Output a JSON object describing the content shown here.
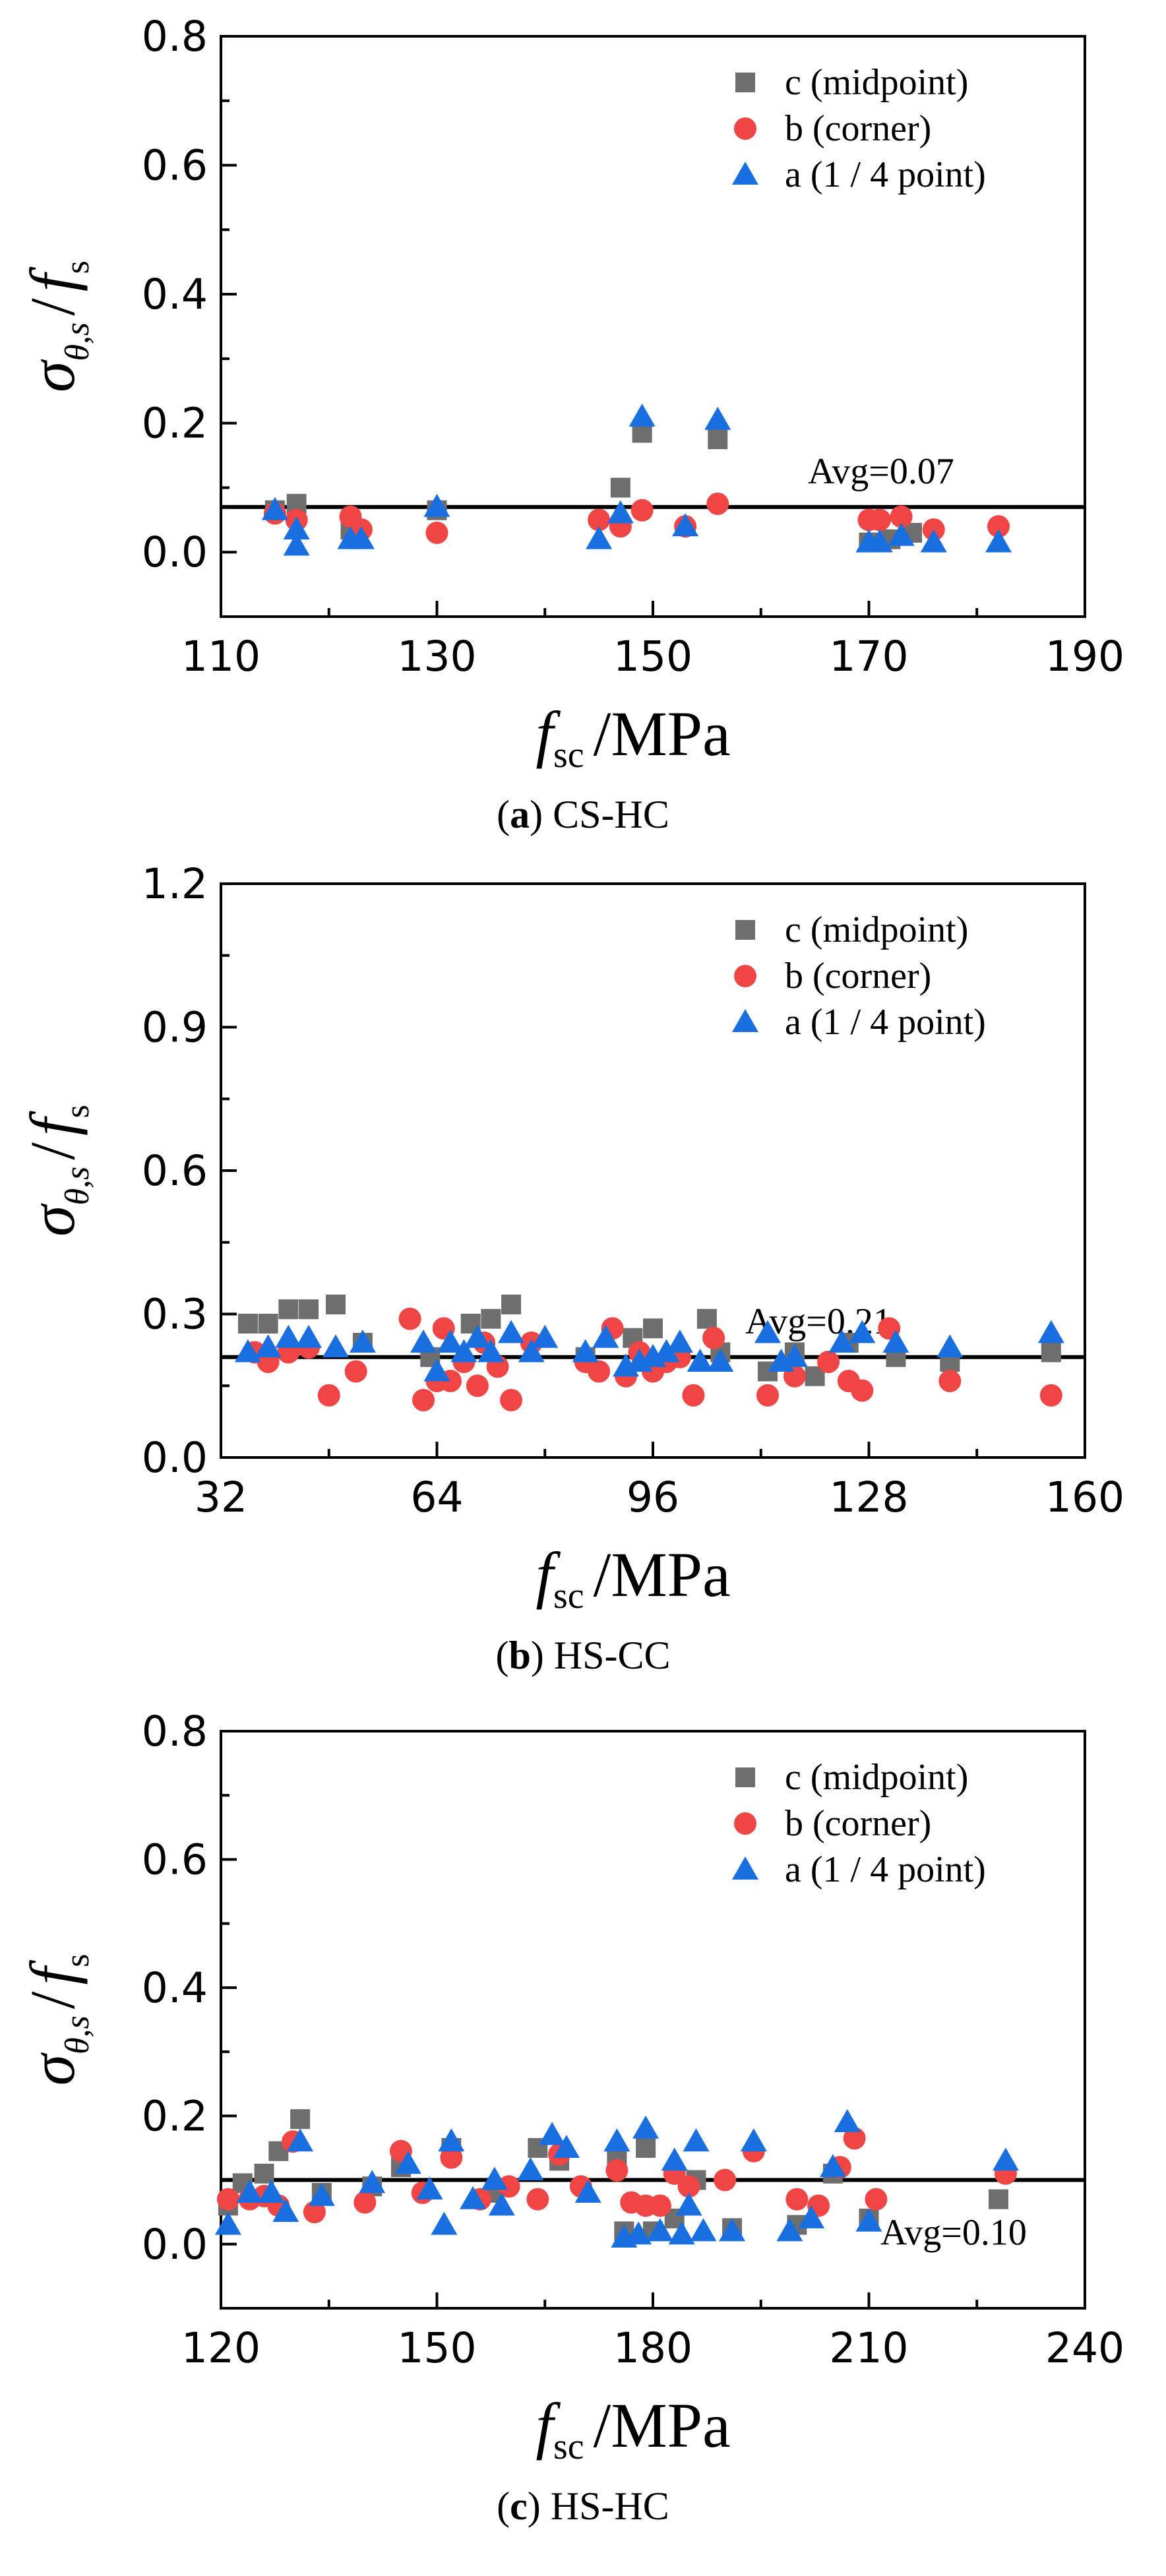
{
  "chart_data": [
    {
      "type": "scatter",
      "caption_letter": "a",
      "caption_text": "CS-HC",
      "xlabel_main": "f",
      "xlabel_sub": "sc",
      "xlabel_unit": "/MPa",
      "ylabel_main": "σ",
      "ylabel_sub": "θ,s",
      "ylabel_den": "f",
      "ylabel_den_sub": "s",
      "xlim": [
        110,
        190
      ],
      "ylim": [
        -0.1,
        0.8
      ],
      "xticks": [
        "110",
        "130",
        "150",
        "170",
        "190"
      ],
      "yticks": [
        "0.0",
        "0.2",
        "0.4",
        "0.6",
        "0.8"
      ],
      "avg_value": 0.07,
      "avg_label": "Avg=0.07",
      "legend_position": "top-right",
      "series": [
        {
          "name": "c (midpoint)",
          "marker": "square",
          "color": "#6e6e6e",
          "points": [
            [
              115,
              0.065
            ],
            [
              117,
              0.075
            ],
            [
              122,
              0.035
            ],
            [
              130,
              0.065
            ],
            [
              147,
              0.1
            ],
            [
              149,
              0.185
            ],
            [
              156,
              0.175
            ],
            [
              170,
              0.015
            ],
            [
              172,
              0.02
            ],
            [
              174,
              0.03
            ]
          ]
        },
        {
          "name": "b (corner)",
          "marker": "circle",
          "color": "#f04545",
          "points": [
            [
              115,
              0.06
            ],
            [
              117,
              0.05
            ],
            [
              122,
              0.055
            ],
            [
              123,
              0.035
            ],
            [
              130,
              0.03
            ],
            [
              145,
              0.05
            ],
            [
              147,
              0.04
            ],
            [
              149,
              0.065
            ],
            [
              153,
              0.04
            ],
            [
              156,
              0.075
            ],
            [
              170,
              0.05
            ],
            [
              171,
              0.05
            ],
            [
              173,
              0.055
            ],
            [
              176,
              0.035
            ],
            [
              182,
              0.04
            ]
          ]
        },
        {
          "name": "a (1 / 4 point)",
          "marker": "triangle",
          "color": "#1a6fe0",
          "points": [
            [
              115,
              0.065
            ],
            [
              117,
              0.035
            ],
            [
              117,
              0.01
            ],
            [
              122,
              0.02
            ],
            [
              123,
              0.02
            ],
            [
              130,
              0.07
            ],
            [
              145,
              0.02
            ],
            [
              147,
              0.06
            ],
            [
              149,
              0.21
            ],
            [
              153,
              0.04
            ],
            [
              156,
              0.205
            ],
            [
              170,
              0.015
            ],
            [
              171,
              0.015
            ],
            [
              173,
              0.025
            ],
            [
              176,
              0.015
            ],
            [
              182,
              0.015
            ]
          ]
        }
      ]
    },
    {
      "type": "scatter",
      "caption_letter": "b",
      "caption_text": "HS-CC",
      "xlabel_main": "f",
      "xlabel_sub": "sc",
      "xlabel_unit": "/MPa",
      "ylabel_main": "σ",
      "ylabel_sub": "θ,s",
      "ylabel_den": "f",
      "ylabel_den_sub": "s",
      "xlim": [
        32,
        160
      ],
      "ylim": [
        0.0,
        1.2
      ],
      "xticks": [
        "32",
        "64",
        "96",
        "128",
        "160"
      ],
      "yticks": [
        "0.0",
        "0.3",
        "0.6",
        "0.9",
        "1.2"
      ],
      "avg_value": 0.21,
      "avg_label": "Avg=0.21",
      "legend_position": "top-right",
      "series": [
        {
          "name": "c (midpoint)",
          "marker": "square",
          "color": "#6e6e6e",
          "points": [
            [
              36,
              0.28
            ],
            [
              39,
              0.28
            ],
            [
              42,
              0.31
            ],
            [
              45,
              0.31
            ],
            [
              49,
              0.32
            ],
            [
              53,
              0.24
            ],
            [
              63,
              0.21
            ],
            [
              69,
              0.28
            ],
            [
              72,
              0.29
            ],
            [
              75,
              0.32
            ],
            [
              86,
              0.21
            ],
            [
              93,
              0.25
            ],
            [
              96,
              0.27
            ],
            [
              104,
              0.29
            ],
            [
              106,
              0.22
            ],
            [
              113,
              0.18
            ],
            [
              117,
              0.22
            ],
            [
              120,
              0.17
            ],
            [
              125,
              0.24
            ],
            [
              132,
              0.21
            ],
            [
              140,
              0.2
            ],
            [
              155,
              0.22
            ]
          ]
        },
        {
          "name": "b (corner)",
          "marker": "circle",
          "color": "#f04545",
          "points": [
            [
              37,
              0.22
            ],
            [
              39,
              0.2
            ],
            [
              42,
              0.22
            ],
            [
              45,
              0.23
            ],
            [
              48,
              0.13
            ],
            [
              52,
              0.18
            ],
            [
              60,
              0.29
            ],
            [
              62,
              0.12
            ],
            [
              64,
              0.16
            ],
            [
              65,
              0.27
            ],
            [
              66,
              0.16
            ],
            [
              68,
              0.2
            ],
            [
              70,
              0.15
            ],
            [
              71,
              0.24
            ],
            [
              73,
              0.19
            ],
            [
              75,
              0.12
            ],
            [
              78,
              0.24
            ],
            [
              86,
              0.2
            ],
            [
              88,
              0.18
            ],
            [
              90,
              0.27
            ],
            [
              92,
              0.17
            ],
            [
              94,
              0.22
            ],
            [
              96,
              0.18
            ],
            [
              98,
              0.2
            ],
            [
              100,
              0.21
            ],
            [
              102,
              0.13
            ],
            [
              105,
              0.25
            ],
            [
              113,
              0.13
            ],
            [
              117,
              0.17
            ],
            [
              122,
              0.2
            ],
            [
              125,
              0.16
            ],
            [
              127,
              0.14
            ],
            [
              131,
              0.27
            ],
            [
              140,
              0.16
            ],
            [
              155,
              0.13
            ]
          ]
        },
        {
          "name": "a (1 / 4 point)",
          "marker": "triangle",
          "color": "#1a6fe0",
          "points": [
            [
              36,
              0.22
            ],
            [
              39,
              0.23
            ],
            [
              42,
              0.25
            ],
            [
              45,
              0.25
            ],
            [
              49,
              0.23
            ],
            [
              53,
              0.24
            ],
            [
              62,
              0.24
            ],
            [
              64,
              0.18
            ],
            [
              66,
              0.24
            ],
            [
              68,
              0.22
            ],
            [
              70,
              0.25
            ],
            [
              72,
              0.22
            ],
            [
              75,
              0.26
            ],
            [
              78,
              0.22
            ],
            [
              80,
              0.25
            ],
            [
              86,
              0.22
            ],
            [
              89,
              0.25
            ],
            [
              92,
              0.19
            ],
            [
              94,
              0.2
            ],
            [
              96,
              0.21
            ],
            [
              98,
              0.22
            ],
            [
              100,
              0.24
            ],
            [
              103,
              0.2
            ],
            [
              106,
              0.2
            ],
            [
              113,
              0.26
            ],
            [
              115,
              0.2
            ],
            [
              117,
              0.21
            ],
            [
              124,
              0.24
            ],
            [
              127,
              0.26
            ],
            [
              132,
              0.24
            ],
            [
              140,
              0.23
            ],
            [
              155,
              0.26
            ]
          ]
        }
      ]
    },
    {
      "type": "scatter",
      "caption_letter": "c",
      "caption_text": "HS-HC",
      "xlabel_main": "f",
      "xlabel_sub": "sc",
      "xlabel_unit": "/MPa",
      "ylabel_main": "σ",
      "ylabel_sub": "θ,s",
      "ylabel_den": "f",
      "ylabel_den_sub": "s",
      "xlim": [
        120,
        240
      ],
      "ylim": [
        -0.1,
        0.8
      ],
      "xticks": [
        "120",
        "150",
        "180",
        "210",
        "240"
      ],
      "yticks": [
        "0.0",
        "0.2",
        "0.4",
        "0.6",
        "0.8"
      ],
      "avg_value": 0.1,
      "avg_label": "Avg=0.10",
      "legend_position": "top-right",
      "series": [
        {
          "name": "c (midpoint)",
          "marker": "square",
          "color": "#6e6e6e",
          "points": [
            [
              121,
              0.06
            ],
            [
              123,
              0.095
            ],
            [
              126,
              0.11
            ],
            [
              128,
              0.145
            ],
            [
              131,
              0.195
            ],
            [
              134,
              0.08
            ],
            [
              141,
              0.09
            ],
            [
              145,
              0.12
            ],
            [
              152,
              0.15
            ],
            [
              158,
              0.08
            ],
            [
              164,
              0.15
            ],
            [
              167,
              0.13
            ],
            [
              175,
              0.13
            ],
            [
              176,
              0.02
            ],
            [
              179,
              0.15
            ],
            [
              180,
              0.02
            ],
            [
              183,
              0.04
            ],
            [
              186,
              0.1
            ],
            [
              191,
              0.025
            ],
            [
              200,
              0.03
            ],
            [
              205,
              0.11
            ],
            [
              210,
              0.04
            ],
            [
              228,
              0.07
            ]
          ]
        },
        {
          "name": "b (corner)",
          "marker": "circle",
          "color": "#f04545",
          "points": [
            [
              121,
              0.07
            ],
            [
              124,
              0.07
            ],
            [
              126,
              0.075
            ],
            [
              128,
              0.06
            ],
            [
              130,
              0.16
            ],
            [
              133,
              0.05
            ],
            [
              140,
              0.065
            ],
            [
              145,
              0.145
            ],
            [
              148,
              0.08
            ],
            [
              152,
              0.135
            ],
            [
              156,
              0.07
            ],
            [
              160,
              0.09
            ],
            [
              164,
              0.07
            ],
            [
              167,
              0.14
            ],
            [
              170,
              0.09
            ],
            [
              175,
              0.115
            ],
            [
              177,
              0.065
            ],
            [
              179,
              0.06
            ],
            [
              181,
              0.06
            ],
            [
              183,
              0.11
            ],
            [
              185,
              0.09
            ],
            [
              190,
              0.1
            ],
            [
              194,
              0.145
            ],
            [
              200,
              0.07
            ],
            [
              203,
              0.06
            ],
            [
              206,
              0.12
            ],
            [
              208,
              0.165
            ],
            [
              211,
              0.07
            ],
            [
              229,
              0.11
            ]
          ]
        },
        {
          "name": "a (1 / 4 point)",
          "marker": "triangle",
          "color": "#1a6fe0",
          "points": [
            [
              121,
              0.03
            ],
            [
              124,
              0.08
            ],
            [
              127,
              0.08
            ],
            [
              129,
              0.05
            ],
            [
              131,
              0.16
            ],
            [
              134,
              0.075
            ],
            [
              141,
              0.095
            ],
            [
              146,
              0.125
            ],
            [
              149,
              0.085
            ],
            [
              151,
              0.03
            ],
            [
              152,
              0.16
            ],
            [
              155,
              0.07
            ],
            [
              158,
              0.1
            ],
            [
              159,
              0.06
            ],
            [
              163,
              0.115
            ],
            [
              166,
              0.17
            ],
            [
              168,
              0.15
            ],
            [
              171,
              0.08
            ],
            [
              175,
              0.16
            ],
            [
              176,
              0.01
            ],
            [
              178,
              0.015
            ],
            [
              179,
              0.18
            ],
            [
              181,
              0.02
            ],
            [
              183,
              0.13
            ],
            [
              184,
              0.015
            ],
            [
              185,
              0.06
            ],
            [
              186,
              0.16
            ],
            [
              187,
              0.02
            ],
            [
              191,
              0.02
            ],
            [
              194,
              0.16
            ],
            [
              199,
              0.02
            ],
            [
              202,
              0.04
            ],
            [
              205,
              0.12
            ],
            [
              207,
              0.19
            ],
            [
              210,
              0.035
            ],
            [
              229,
              0.13
            ]
          ]
        }
      ]
    }
  ]
}
